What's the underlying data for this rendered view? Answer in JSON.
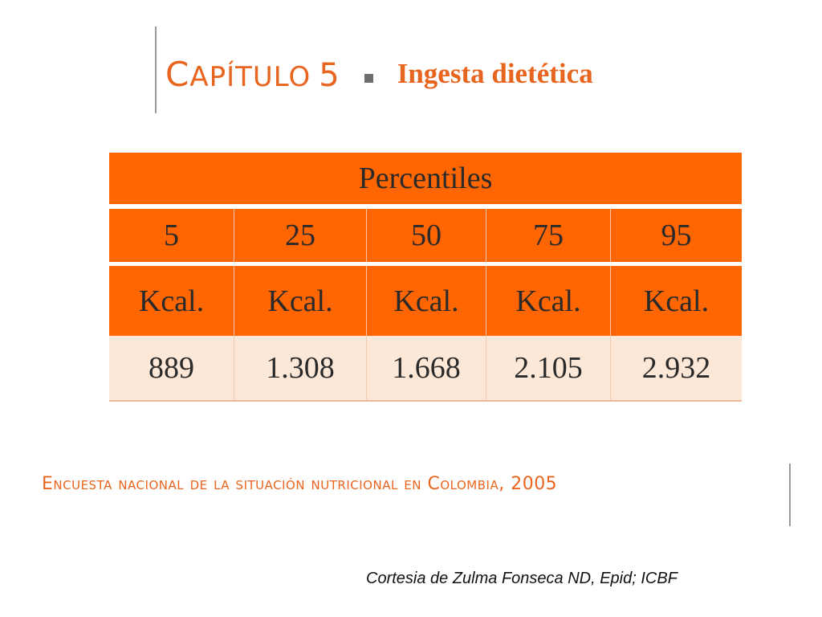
{
  "header": {
    "chapter_first_letter": "C",
    "chapter_rest": "APÍTULO",
    "chapter_number": "5",
    "subtitle": "Ingesta dietética"
  },
  "table": {
    "title": "Percentiles",
    "percentiles": [
      "5",
      "25",
      "50",
      "75",
      "95"
    ],
    "units": [
      "Kcal.",
      "Kcal.",
      "Kcal.",
      "Kcal.",
      "Kcal."
    ],
    "values": [
      "889",
      "1.308",
      "1.668",
      "2.105",
      "2.932"
    ]
  },
  "footer": {
    "title": "Encuesta nacional de la situación nutricional en Colombia, 2005",
    "credit": "Cortesia de Zulma Fonseca ND, Epid; ICBF"
  },
  "colors": {
    "accent": "#e8651f",
    "table_header": "#ff6500",
    "table_row": "#fde8d8"
  }
}
